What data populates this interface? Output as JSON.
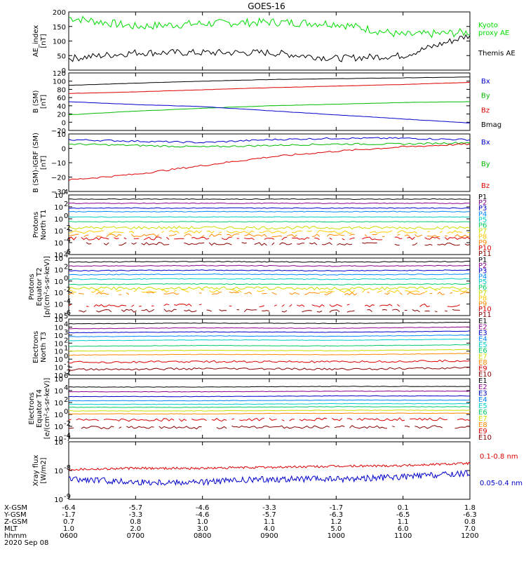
{
  "title": "GOES-16",
  "panels": [
    {
      "id": "ae",
      "ylabel": [
        "AE_index",
        "[nT]"
      ],
      "yscale": "linear",
      "ylim": [
        0,
        200
      ],
      "yticks": [
        "0",
        "50",
        "100",
        "150",
        "200"
      ],
      "legend": [
        {
          "text": "Kyoto",
          "color": "#00dd00"
        },
        {
          "text": "proxy AE",
          "color": "#00dd00"
        },
        {
          "text": "Themis AE",
          "color": "#000000"
        }
      ]
    },
    {
      "id": "bsm",
      "ylabel": [
        "B (SM)",
        "[nT]"
      ],
      "yscale": "linear",
      "ylim": [
        -20,
        120
      ],
      "yticks": [
        "−20",
        "0",
        "20",
        "40",
        "60",
        "80",
        "100",
        "120"
      ],
      "legend": [
        {
          "text": "Bx",
          "color": "#0000cc"
        },
        {
          "text": "By",
          "color": "#00bb00"
        },
        {
          "text": "Bz",
          "color": "#dd0000"
        },
        {
          "text": "Bmag",
          "color": "#000000"
        }
      ]
    },
    {
      "id": "bigrf",
      "ylabel": [
        "B (SM)-IGRF (SM)",
        "[nT]"
      ],
      "yscale": "linear",
      "ylim": [
        -30,
        10
      ],
      "yticks": [
        "−30",
        "−20",
        "−10",
        "0",
        "10"
      ],
      "legend": [
        {
          "text": "Bx",
          "color": "#0000cc"
        },
        {
          "text": "By",
          "color": "#00bb00"
        },
        {
          "text": "Bz",
          "color": "#dd0000"
        }
      ]
    },
    {
      "id": "pn",
      "ylabel": [
        "Protons",
        "North T1"
      ],
      "yscale": "log",
      "ylim": [
        -6,
        4
      ],
      "ytickexp": [
        -6,
        -4,
        -2,
        0,
        2,
        4
      ],
      "legend": [
        {
          "text": "P1",
          "color": "#000000"
        },
        {
          "text": "P2",
          "color": "#880088"
        },
        {
          "text": "P3",
          "color": "#0000cc"
        },
        {
          "text": "P4",
          "color": "#0088ff"
        },
        {
          "text": "P5",
          "color": "#00cccc"
        },
        {
          "text": "P6",
          "color": "#00cc66"
        },
        {
          "text": "P7",
          "color": "#ccdd00"
        },
        {
          "text": "P8",
          "color": "#ffcc00"
        },
        {
          "text": "P9",
          "color": "#ff8800"
        },
        {
          "text": "P10",
          "color": "#dd0000"
        },
        {
          "text": "P11",
          "color": "#880000"
        }
      ]
    },
    {
      "id": "pe",
      "ylabel": [
        "Protons",
        "Equator T2",
        "[p/(cm²-s-sr-keV)]"
      ],
      "yscale": "log",
      "ylim": [
        -6,
        4
      ],
      "ytickexp": [
        -6,
        -4,
        -2,
        0,
        2,
        4
      ],
      "legend": [
        {
          "text": "P1",
          "color": "#000000"
        },
        {
          "text": "P2",
          "color": "#880088"
        },
        {
          "text": "P3",
          "color": "#0000cc"
        },
        {
          "text": "P4",
          "color": "#0088ff"
        },
        {
          "text": "P5",
          "color": "#00cccc"
        },
        {
          "text": "P6",
          "color": "#00cc66"
        },
        {
          "text": "P7",
          "color": "#ccdd00"
        },
        {
          "text": "P8",
          "color": "#ffcc00"
        },
        {
          "text": "P9",
          "color": "#ff8800"
        },
        {
          "text": "P10",
          "color": "#dd0000"
        },
        {
          "text": "P11",
          "color": "#880000"
        }
      ]
    },
    {
      "id": "en",
      "ylabel": [
        "Electrons",
        "North T3"
      ],
      "yscale": "log",
      "ylim": [
        -2,
        5
      ],
      "ytickexp": [
        -2,
        -1,
        0,
        1,
        2,
        3,
        4,
        5
      ],
      "legend": [
        {
          "text": "E1",
          "color": "#000000"
        },
        {
          "text": "E2",
          "color": "#880088"
        },
        {
          "text": "E3",
          "color": "#0000cc"
        },
        {
          "text": "E4",
          "color": "#0088ff"
        },
        {
          "text": "E5",
          "color": "#00cccc"
        },
        {
          "text": "E6",
          "color": "#00cc66"
        },
        {
          "text": "E7",
          "color": "#ccdd00"
        },
        {
          "text": "E8",
          "color": "#ff8800"
        },
        {
          "text": "E9",
          "color": "#dd0000"
        },
        {
          "text": "E10",
          "color": "#880000"
        }
      ]
    },
    {
      "id": "ee",
      "ylabel": [
        "Electrons",
        "Equator T4",
        "[e/(cm²-s-sr-keV)]"
      ],
      "yscale": "log",
      "ylim": [
        -4,
        6
      ],
      "ytickexp": [
        -4,
        -2,
        0,
        2,
        4,
        6
      ],
      "legend": [
        {
          "text": "E1",
          "color": "#000000"
        },
        {
          "text": "E2",
          "color": "#880088"
        },
        {
          "text": "E3",
          "color": "#0000cc"
        },
        {
          "text": "E4",
          "color": "#0088ff"
        },
        {
          "text": "E5",
          "color": "#00cccc"
        },
        {
          "text": "E6",
          "color": "#00cc66"
        },
        {
          "text": "E7",
          "color": "#ccdd00"
        },
        {
          "text": "E8",
          "color": "#ff8800"
        },
        {
          "text": "E9",
          "color": "#dd0000"
        },
        {
          "text": "E10",
          "color": "#880000"
        }
      ]
    },
    {
      "id": "xray",
      "ylabel": [
        "Xray flux",
        "[W/m2]"
      ],
      "yscale": "log",
      "ylim": [
        -9,
        -7
      ],
      "ytickexp": [
        -9,
        -8,
        -7
      ],
      "legend": [
        {
          "text": "0.1-0.8 nm",
          "color": "#dd0000"
        },
        {
          "text": "0.05-0.4 nm",
          "color": "#0000cc"
        }
      ]
    }
  ],
  "xaxis": {
    "labels": [
      "X-GSM",
      "Y-GSM",
      "Z-GSM",
      "MLT",
      "hhmm"
    ],
    "date": "2020 Sep 08",
    "rows": [
      [
        "-6.4",
        "-5.7",
        "-4.6",
        "-3.3",
        "-1.7",
        "0.1",
        "1.8"
      ],
      [
        "-1.7",
        "-3.3",
        "-4.6",
        "-5.7",
        "-6.3",
        "-6.5",
        "-6.3"
      ],
      [
        "0.7",
        "0.8",
        "1.0",
        "1.1",
        "1.2",
        "1.1",
        "0.8"
      ],
      [
        "1.0",
        "2.0",
        "3.0",
        "4.0",
        "5.0",
        "6.0",
        "7.0"
      ],
      [
        "0600",
        "0700",
        "0800",
        "0900",
        "1000",
        "1100",
        "1200"
      ]
    ]
  },
  "chart_data": {
    "type": "line",
    "x": [
      "0600",
      "0700",
      "0800",
      "0900",
      "1000",
      "1100",
      "1200"
    ],
    "ae": {
      "kyoto_proxy_ae": [
        180,
        150,
        160,
        165,
        160,
        120,
        130
      ],
      "themis_ae": [
        40,
        60,
        60,
        60,
        40,
        50,
        120
      ]
    },
    "b_sm": {
      "Bx": [
        50,
        43,
        38,
        28,
        18,
        8,
        -2
      ],
      "By": [
        18,
        27,
        34,
        40,
        44,
        48,
        50
      ],
      "Bz": [
        70,
        74,
        79,
        84,
        88,
        92,
        97
      ],
      "Bmag": [
        90,
        95,
        100,
        104,
        106,
        108,
        110
      ]
    },
    "b_minus_igrf": {
      "Bx": [
        6,
        5,
        4,
        6,
        7,
        7,
        6
      ],
      "By": [
        3,
        2,
        1,
        2,
        3,
        3,
        4
      ],
      "Bz": [
        -22,
        -18,
        -12,
        -6,
        -2,
        1,
        3
      ]
    },
    "protons_north_log10": [
      3.3,
      2.6,
      1.8,
      1.2,
      0.3,
      -0.5,
      -1.5,
      -2.2,
      -2.8,
      -3.3,
      -4.2
    ],
    "protons_equator_log10": [
      3.3,
      2.6,
      1.8,
      1.1,
      0.3,
      -0.6,
      -1.3,
      -1.8,
      -2.2,
      -4.3,
      -5.2
    ],
    "electrons_north_log10": [
      4.4,
      3.8,
      3.3,
      2.8,
      2.3,
      1.6,
      1.0,
      0.5,
      -0.4,
      -1.3
    ],
    "electrons_equator_log10": [
      4.6,
      3.8,
      3.0,
      2.3,
      1.7,
      1.2,
      0.6,
      0.1,
      -0.9,
      -2.2
    ],
    "xray": {
      "0.1-0.8 nm": [
        "1.1e-8",
        "1.2e-8",
        "1.2e-8",
        "1.3e-8",
        "1.4e-8",
        "1.5e-8",
        "1.8e-8"
      ],
      "0.05-0.4 nm": [
        "5e-9",
        "4e-9",
        "4e-9",
        "5e-9",
        "5e-9",
        "6e-9",
        "8e-9"
      ]
    }
  }
}
